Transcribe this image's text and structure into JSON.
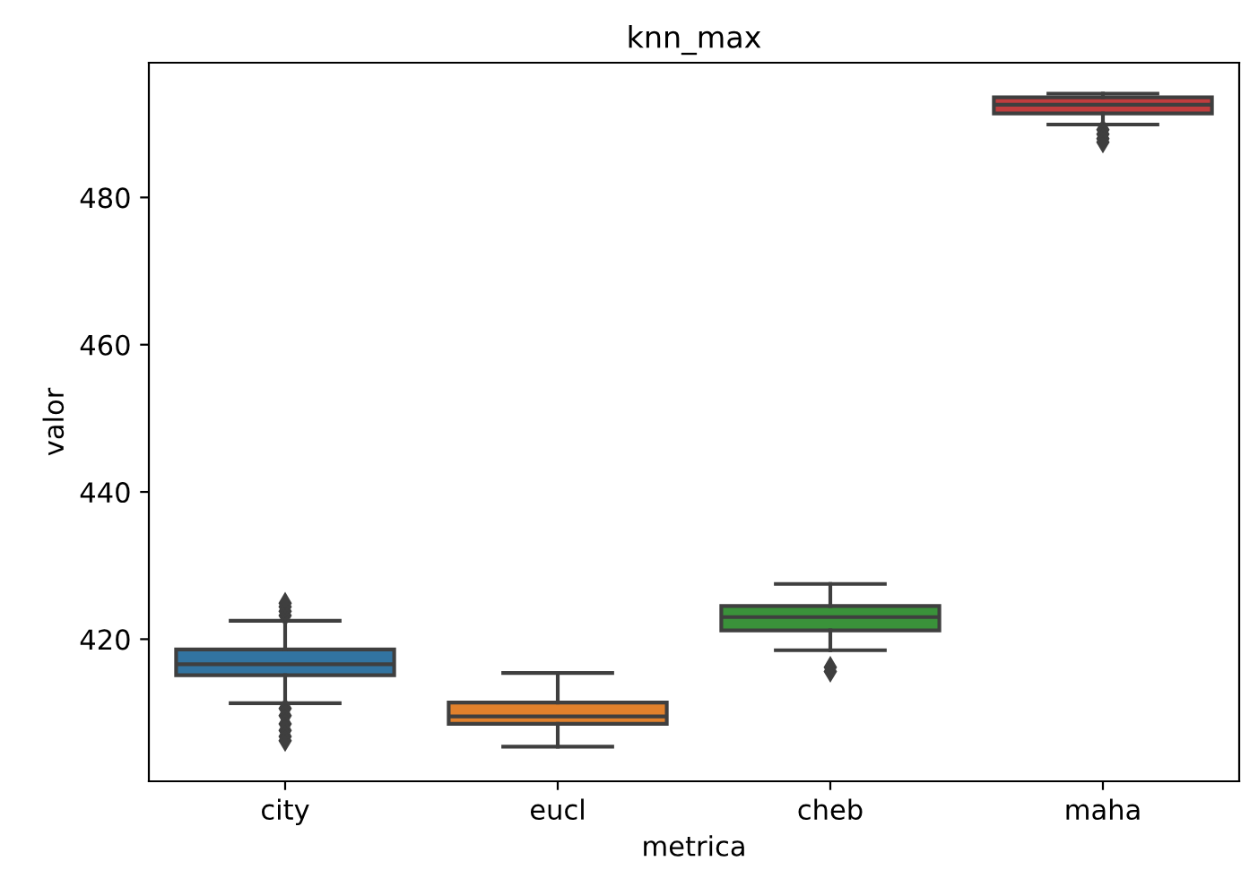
{
  "chart_data": {
    "type": "box",
    "title": "knn_max",
    "xlabel": "metrica",
    "ylabel": "valor",
    "categories": [
      "city",
      "eucl",
      "cheb",
      "maha"
    ],
    "colors": [
      "#3274a1",
      "#e1812c",
      "#3a923a",
      "#c03d3e"
    ],
    "boxes": [
      {
        "low": 411.3,
        "q1": 415.1,
        "median": 416.6,
        "q3": 418.6,
        "high": 422.5,
        "outliers": [
          423.2,
          423.8,
          424.4,
          424.9,
          410.6,
          409.6,
          408.5,
          407.6,
          406.8,
          406.2
        ]
      },
      {
        "low": 405.4,
        "q1": 408.5,
        "median": 409.5,
        "q3": 411.4,
        "high": 415.4
      },
      {
        "low": 418.5,
        "q1": 421.2,
        "median": 423.0,
        "q3": 424.5,
        "high": 427.5,
        "outliers": [
          416.2,
          415.6
        ]
      },
      {
        "low": 489.9,
        "q1": 491.4,
        "median": 492.6,
        "q3": 493.6,
        "high": 494.1,
        "outliers": [
          489.2,
          488.6,
          488.0,
          487.5
        ]
      }
    ],
    "ylim": [
      400.7,
      498.3
    ],
    "yticks": [
      420,
      440,
      460,
      480
    ],
    "grid": false,
    "marker": "diamond"
  }
}
